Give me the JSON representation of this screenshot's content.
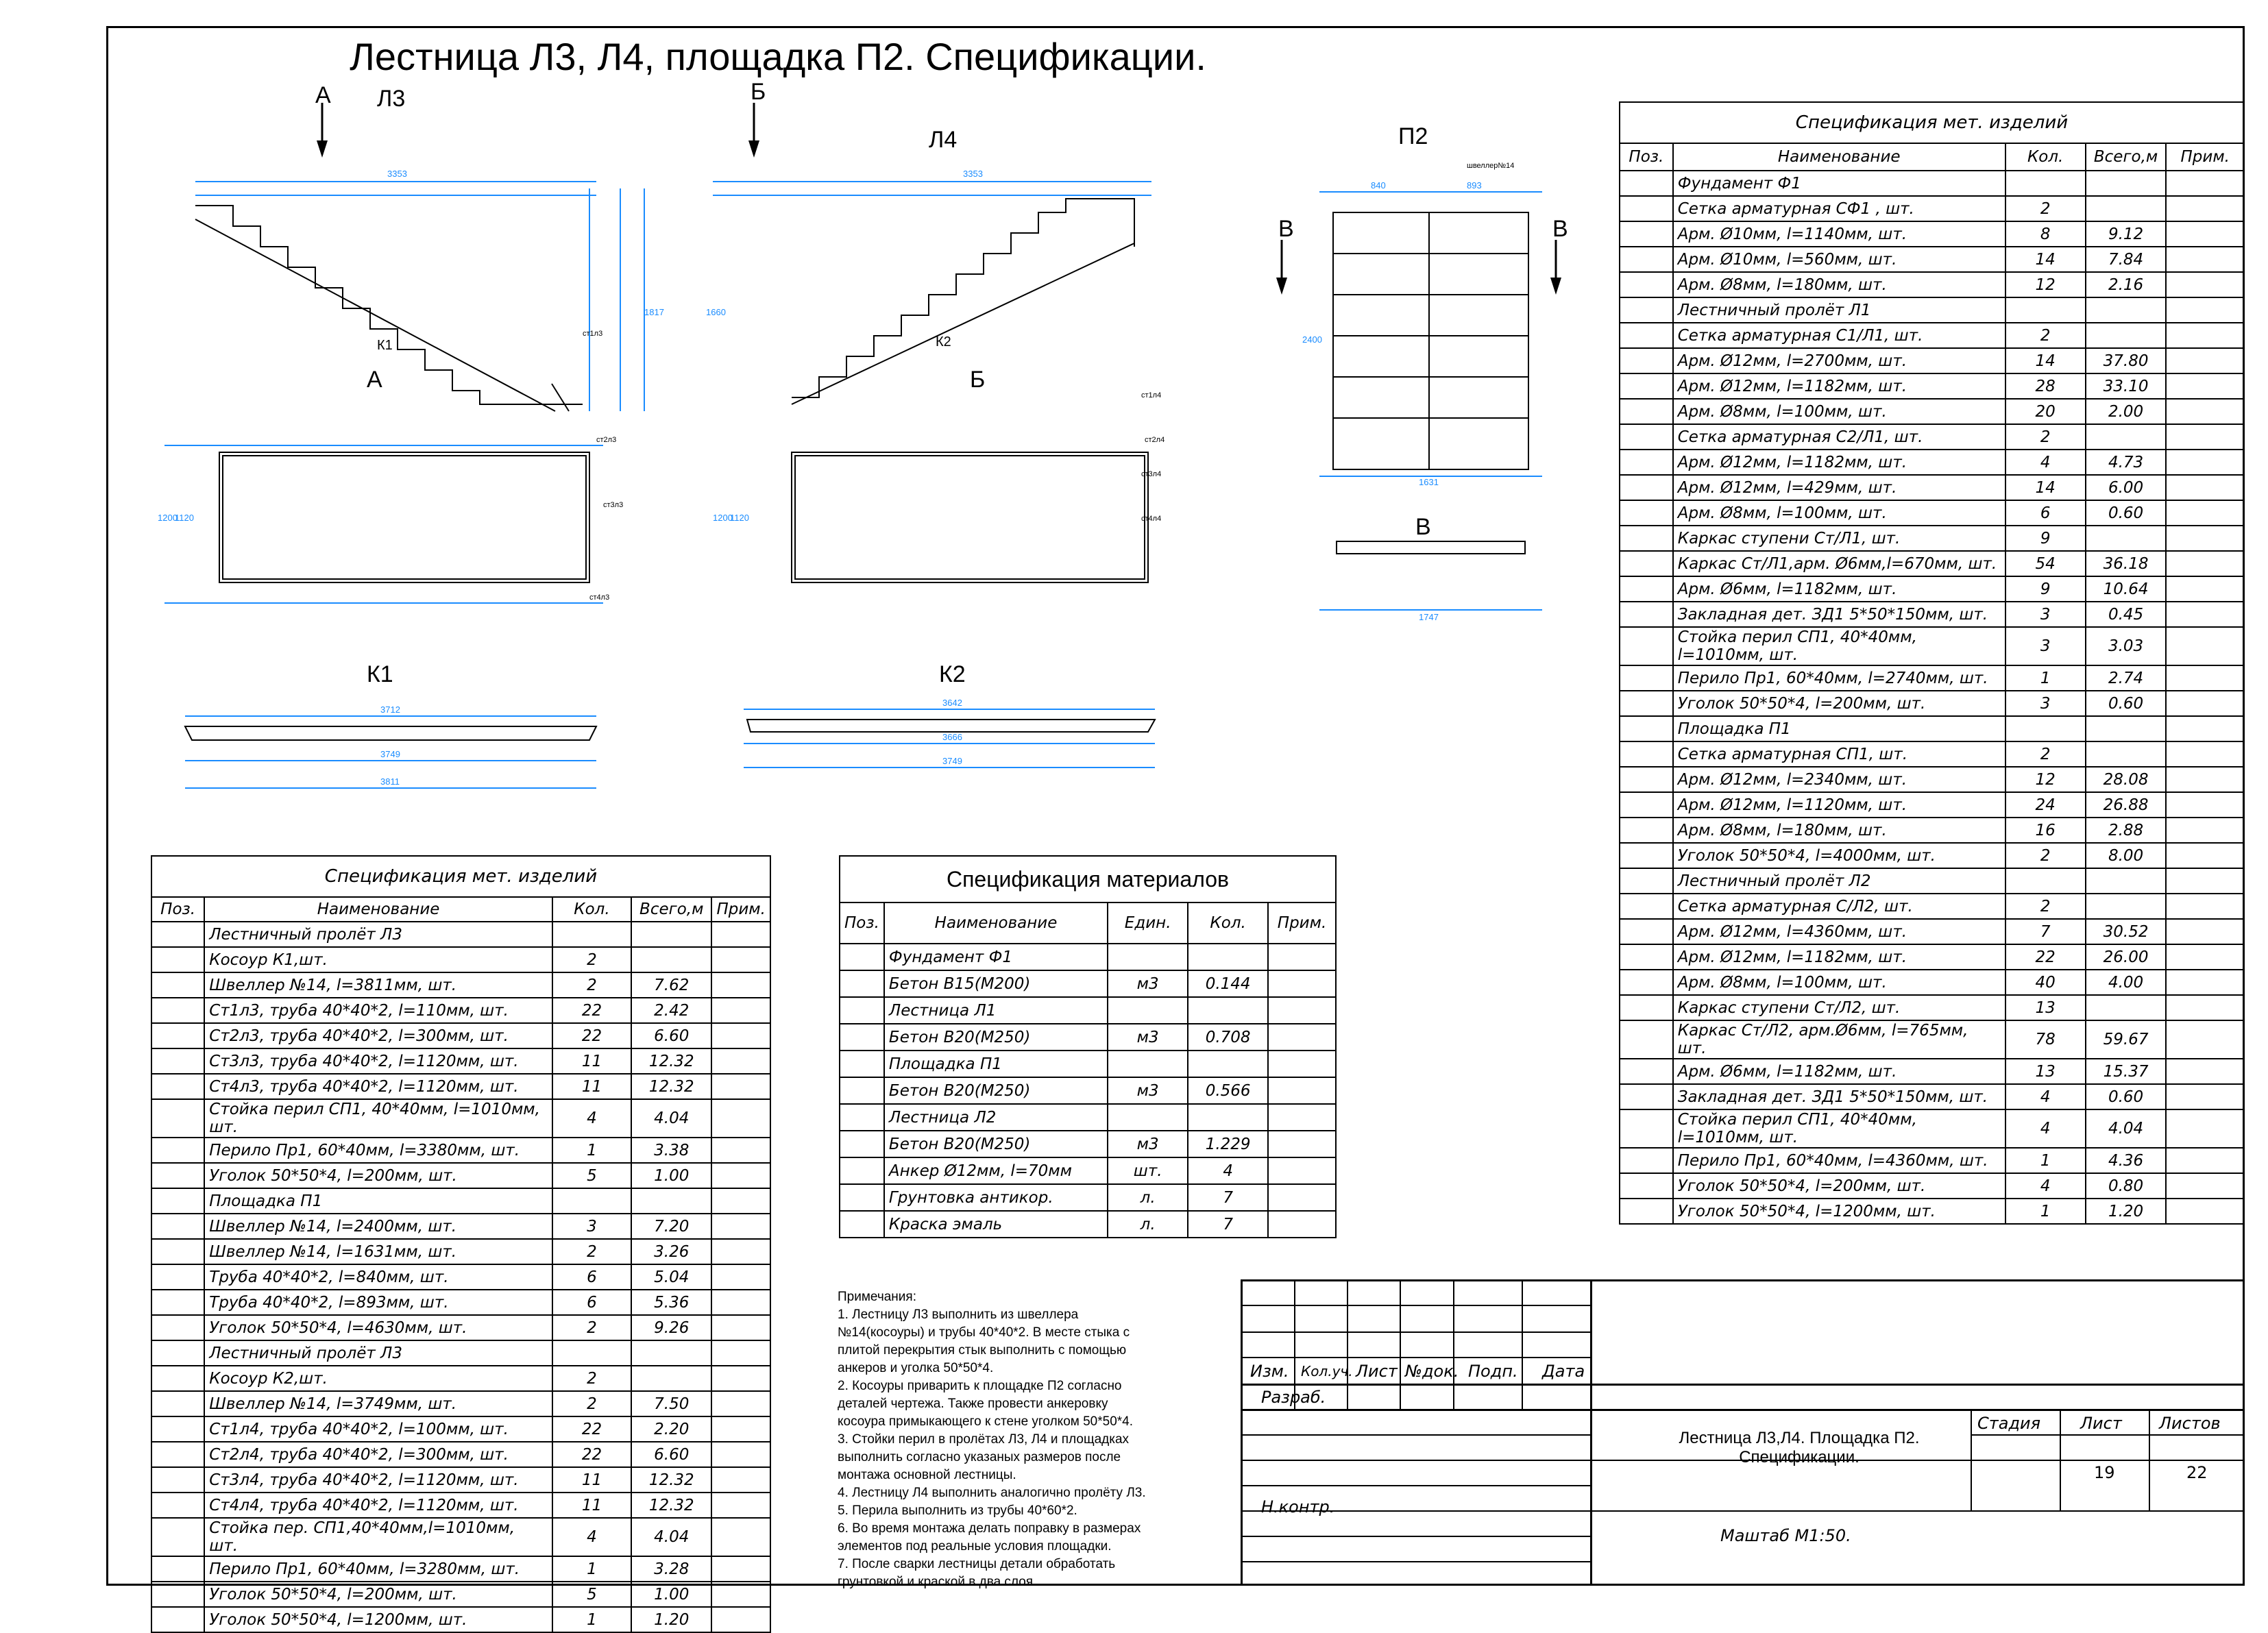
{
  "title": "Лестница Л3, Л4, площадка П2. Спецификации.",
  "drawings": {
    "l3": {
      "name": "Л3",
      "section": "А",
      "kosour": "К1",
      "dims": [
        "3353",
        "1817",
        "3712",
        "3749",
        "3811",
        "1120",
        "1200"
      ]
    },
    "l4": {
      "name": "Л4",
      "section": "Б",
      "kosour": "К2",
      "dims": [
        "3353",
        "1660",
        "3642",
        "3666",
        "3749",
        "1120",
        "1200"
      ]
    },
    "p2": {
      "name": "П2",
      "section": "В",
      "dims": [
        "2400",
        "1631",
        "1747",
        "840",
        "893"
      ]
    },
    "kosour_titles": [
      "К1",
      "К2"
    ],
    "steel_labels": [
      "ст1л3",
      "ст2л3",
      "ст3л3",
      "ст4л3",
      "ст1л4",
      "ст2л4",
      "ст3л4",
      "ст4л4",
      "швеллер№14"
    ]
  },
  "spec_left": {
    "caption": "Спецификация мет. изделий",
    "headers": [
      "Поз.",
      "Наименование",
      "Кол.",
      "Всего,м",
      "Прим."
    ],
    "rows": [
      [
        "",
        "Лестничный пролёт Л3",
        "",
        "",
        ""
      ],
      [
        "",
        "Косоур К1,шт.",
        "2",
        "",
        ""
      ],
      [
        "",
        "Швеллер №14, l=3811мм, шт.",
        "2",
        "7.62",
        ""
      ],
      [
        "",
        "Ст1л3, труба 40*40*2, l=110мм, шт.",
        "22",
        "2.42",
        ""
      ],
      [
        "",
        "Ст2л3, труба 40*40*2, l=300мм, шт.",
        "22",
        "6.60",
        ""
      ],
      [
        "",
        "Ст3л3, труба 40*40*2, l=1120мм, шт.",
        "11",
        "12.32",
        ""
      ],
      [
        "",
        "Ст4л3, труба 40*40*2, l=1120мм, шт.",
        "11",
        "12.32",
        ""
      ],
      [
        "",
        "Стойка перил СП1, 40*40мм, l=1010мм, шт.",
        "4",
        "4.04",
        ""
      ],
      [
        "",
        "Перило Пр1, 60*40мм, l=3380мм, шт.",
        "1",
        "3.38",
        ""
      ],
      [
        "",
        "Уголок 50*50*4, l=200мм, шт.",
        "5",
        "1.00",
        ""
      ],
      [
        "",
        "Площадка П1",
        "",
        "",
        ""
      ],
      [
        "",
        "Швеллер №14, l=2400мм, шт.",
        "3",
        "7.20",
        ""
      ],
      [
        "",
        "Швеллер №14, l=1631мм, шт.",
        "2",
        "3.26",
        ""
      ],
      [
        "",
        "Труба 40*40*2, l=840мм, шт.",
        "6",
        "5.04",
        ""
      ],
      [
        "",
        "Труба 40*40*2, l=893мм, шт.",
        "6",
        "5.36",
        ""
      ],
      [
        "",
        "Уголок 50*50*4, l=4630мм, шт.",
        "2",
        "9.26",
        ""
      ],
      [
        "",
        "Лестничный пролёт Л3",
        "",
        "",
        ""
      ],
      [
        "",
        "Косоур К2,шт.",
        "2",
        "",
        ""
      ],
      [
        "",
        "Швеллер №14, l=3749мм, шт.",
        "2",
        "7.50",
        ""
      ],
      [
        "",
        "Ст1л4, труба 40*40*2, l=100мм, шт.",
        "22",
        "2.20",
        ""
      ],
      [
        "",
        "Ст2л4, труба 40*40*2, l=300мм, шт.",
        "22",
        "6.60",
        ""
      ],
      [
        "",
        "Ст3л4, труба 40*40*2, l=1120мм, шт.",
        "11",
        "12.32",
        ""
      ],
      [
        "",
        "Ст4л4, труба 40*40*2, l=1120мм, шт.",
        "11",
        "12.32",
        ""
      ],
      [
        "",
        "Стойка пер. СП1,40*40мм,l=1010мм, шт.",
        "4",
        "4.04",
        ""
      ],
      [
        "",
        "Перило Пр1, 60*40мм, l=3280мм, шт.",
        "1",
        "3.28",
        ""
      ],
      [
        "",
        "Уголок 50*50*4, l=200мм, шт.",
        "5",
        "1.00",
        ""
      ],
      [
        "",
        "Уголок 50*50*4, l=1200мм, шт.",
        "1",
        "1.20",
        ""
      ]
    ]
  },
  "spec_materials": {
    "caption": "Спецификация материалов",
    "headers": [
      "Поз.",
      "Наименование",
      "Един.",
      "Кол.",
      "Прим."
    ],
    "rows": [
      [
        "",
        "Фундамент Ф1",
        "",
        "",
        ""
      ],
      [
        "",
        "Бетон В15(М200)",
        "м3",
        "0.144",
        ""
      ],
      [
        "",
        "Лестница Л1",
        "",
        "",
        ""
      ],
      [
        "",
        "Бетон В20(М250)",
        "м3",
        "0.708",
        ""
      ],
      [
        "",
        "Площадка П1",
        "",
        "",
        ""
      ],
      [
        "",
        "Бетон В20(М250)",
        "м3",
        "0.566",
        ""
      ],
      [
        "",
        "Лестница Л2",
        "",
        "",
        ""
      ],
      [
        "",
        "Бетон В20(М250)",
        "м3",
        "1.229",
        ""
      ],
      [
        "",
        "Анкер Ø12мм, l=70мм",
        "шт.",
        "4",
        ""
      ],
      [
        "",
        "Грунтовка антикор.",
        "л.",
        "7",
        ""
      ],
      [
        "",
        "Краска эмаль",
        "л.",
        "7",
        ""
      ]
    ]
  },
  "spec_right": {
    "caption": "Спецификация мет. изделий",
    "headers": [
      "Поз.",
      "Наименование",
      "Кол.",
      "Всего,м",
      "Прим."
    ],
    "rows": [
      [
        "",
        "Фундамент Ф1",
        "",
        "",
        ""
      ],
      [
        "",
        "Сетка арматурная СФ1 , шт.",
        "2",
        "",
        ""
      ],
      [
        "",
        "Арм. Ø10мм, l=1140мм, шт.",
        "8",
        "9.12",
        ""
      ],
      [
        "",
        "Арм. Ø10мм, l=560мм, шт.",
        "14",
        "7.84",
        ""
      ],
      [
        "",
        "Арм. Ø8мм, l=180мм, шт.",
        "12",
        "2.16",
        ""
      ],
      [
        "",
        "Лестничный пролёт Л1",
        "",
        "",
        ""
      ],
      [
        "",
        "Сетка арматурная С1/Л1, шт.",
        "2",
        "",
        ""
      ],
      [
        "",
        "Арм. Ø12мм, l=2700мм, шт.",
        "14",
        "37.80",
        ""
      ],
      [
        "",
        "Арм. Ø12мм, l=1182мм, шт.",
        "28",
        "33.10",
        ""
      ],
      [
        "",
        "Арм. Ø8мм, l=100мм, шт.",
        "20",
        "2.00",
        ""
      ],
      [
        "",
        "Сетка арматурная С2/Л1, шт.",
        "2",
        "",
        ""
      ],
      [
        "",
        "Арм. Ø12мм, l=1182мм, шт.",
        "4",
        "4.73",
        ""
      ],
      [
        "",
        "Арм. Ø12мм, l=429мм, шт.",
        "14",
        "6.00",
        ""
      ],
      [
        "",
        "Арм. Ø8мм, l=100мм, шт.",
        "6",
        "0.60",
        ""
      ],
      [
        "",
        "Каркас ступени Ст/Л1, шт.",
        "9",
        "",
        ""
      ],
      [
        "",
        "Каркас  Ст/Л1,арм. Ø6мм,l=670мм, шт.",
        "54",
        "36.18",
        ""
      ],
      [
        "",
        "Арм. Ø6мм, l=1182мм, шт.",
        "9",
        "10.64",
        ""
      ],
      [
        "",
        "Закладная дет. ЗД1  5*50*150мм, шт.",
        "3",
        "0.45",
        ""
      ],
      [
        "",
        "Стойка перил СП1, 40*40мм, l=1010мм, шт.",
        "3",
        "3.03",
        ""
      ],
      [
        "",
        "Перило Пр1, 60*40мм, l=2740мм, шт.",
        "1",
        "2.74",
        ""
      ],
      [
        "",
        "Уголок 50*50*4, l=200мм, шт.",
        "3",
        "0.60",
        ""
      ],
      [
        "",
        "Площадка П1",
        "",
        "",
        ""
      ],
      [
        "",
        "Сетка арматурная СП1, шт.",
        "2",
        "",
        ""
      ],
      [
        "",
        "Арм. Ø12мм, l=2340мм, шт.",
        "12",
        "28.08",
        ""
      ],
      [
        "",
        "Арм. Ø12мм, l=1120мм, шт.",
        "24",
        "26.88",
        ""
      ],
      [
        "",
        "Арм. Ø8мм, l=180мм, шт.",
        "16",
        "2.88",
        ""
      ],
      [
        "",
        "Уголок 50*50*4, l=4000мм, шт.",
        "2",
        "8.00",
        ""
      ],
      [
        "",
        "Лестничный пролёт Л2",
        "",
        "",
        ""
      ],
      [
        "",
        "Сетка арматурная С/Л2, шт.",
        "2",
        "",
        ""
      ],
      [
        "",
        "Арм. Ø12мм, l=4360мм, шт.",
        "7",
        "30.52",
        ""
      ],
      [
        "",
        "Арм. Ø12мм, l=1182мм, шт.",
        "22",
        "26.00",
        ""
      ],
      [
        "",
        "Арм. Ø8мм, l=100мм, шт.",
        "40",
        "4.00",
        ""
      ],
      [
        "",
        "Каркас ступени Ст/Л2, шт.",
        "13",
        "",
        ""
      ],
      [
        "",
        "Каркас  Ст/Л2, арм.Ø6мм, l=765мм, шт.",
        "78",
        "59.67",
        ""
      ],
      [
        "",
        "Арм. Ø6мм, l=1182мм, шт.",
        "13",
        "15.37",
        ""
      ],
      [
        "",
        "Закладная дет. ЗД1  5*50*150мм, шт.",
        "4",
        "0.60",
        ""
      ],
      [
        "",
        "Стойка перил СП1, 40*40мм, l=1010мм, шт.",
        "4",
        "4.04",
        ""
      ],
      [
        "",
        "Перило Пр1, 60*40мм, l=4360мм, шт.",
        "1",
        "4.36",
        ""
      ],
      [
        "",
        "Уголок 50*50*4, l=200мм, шт.",
        "4",
        "0.80",
        ""
      ],
      [
        "",
        "Уголок 50*50*4, l=1200мм, шт.",
        "1",
        "1.20",
        ""
      ]
    ]
  },
  "notes": {
    "heading": "Примечания:",
    "items": [
      "1. Лестницу Л3 выполнить из швеллера\n№14(косоуры) и трубы 40*40*2. В месте стыка с\nплитой перекрытия стык выполнить с помощью\nанкеров и уголка 50*50*4.",
      "2. Косоуры приварить к площадке П2 согласно\nдеталей чертежа. Также провести анкеровку\nкосоура примыкающего к стене уголком 50*50*4.",
      "3. Стойки перил в пролётах Л3, Л4 и площадках\nвыполнить согласно указаных размеров после\nмонтажа основной лестницы.",
      "4. Лестницу Л4 выполнить аналогично пролёту Л3.",
      "5. Перила выполнить из трубы 40*60*2.",
      "6. Во время монтажа делать поправку в размерах\nэлементов под реальные условия площадки.",
      "7. После сварки лестницы детали обработать\nгрунтовкой и краской в два слоя."
    ]
  },
  "stamp": {
    "cols": [
      "Изм.",
      "Кол.уч.",
      "Лист",
      "№док.",
      "Подп.",
      "Дата"
    ],
    "razrab": "Разраб.",
    "nkontr": "Н.контр.",
    "doc_title": "Лестница Л3,Л4. Площадка П2.\nСпецификации.",
    "stadia_label": "Стадия",
    "list_label": "Лист",
    "listov_label": "Листов",
    "list": "19",
    "listov": "22",
    "scale": "Маштаб М1:50."
  },
  "colors": {
    "dim": "#1a8cff",
    "ink": "#000000"
  }
}
